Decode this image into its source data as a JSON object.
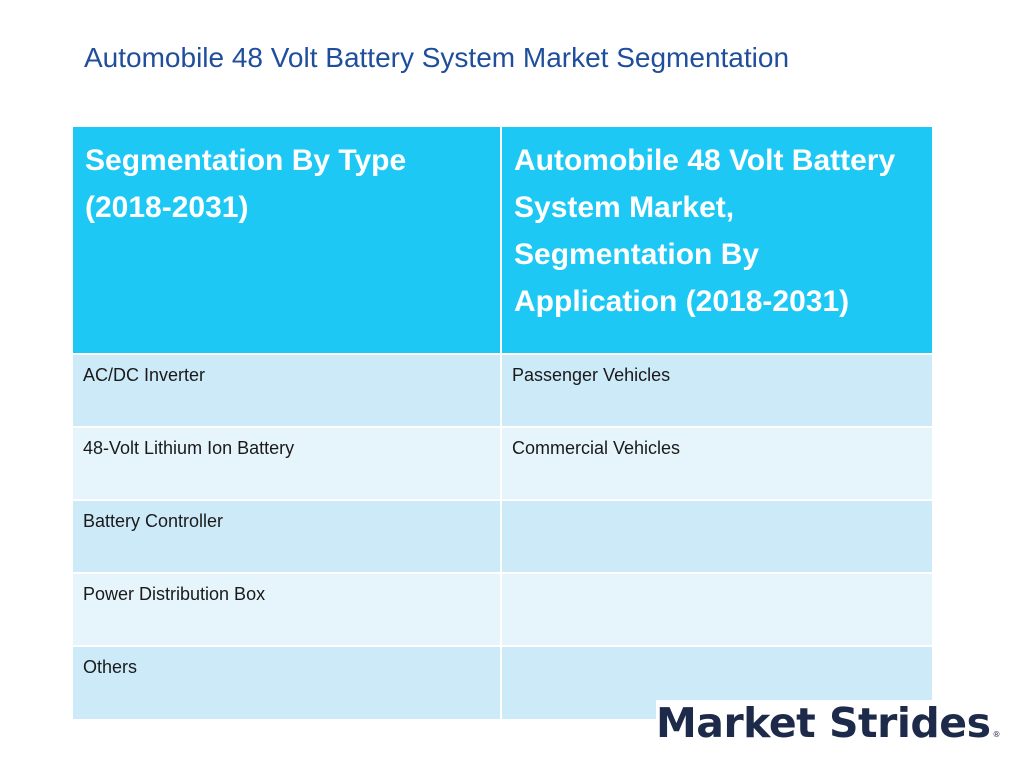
{
  "slide": {
    "title": "Automobile 48 Volt Battery System Market Segmentation"
  },
  "table": {
    "headers": [
      "Segmentation By Type (2018-2031)",
      "Automobile 48 Volt Battery System Market, Segmentation By Application (2018-2031)"
    ],
    "rows": [
      [
        "AC/DC Inverter",
        "Passenger Vehicles"
      ],
      [
        "48-Volt Lithium Ion Battery",
        "Commercial Vehicles"
      ],
      [
        "Battery Controller",
        ""
      ],
      [
        "Power Distribution Box",
        ""
      ],
      [
        "Others",
        ""
      ]
    ]
  },
  "logo": {
    "text": "Market Strides",
    "mark": "®"
  },
  "colors": {
    "title": "#1f4e9c",
    "header_bg": "#1ec8f5",
    "row_dark": "#cdeaf9",
    "row_light": "#e6f5fc",
    "logo": "#1e2a4a"
  }
}
